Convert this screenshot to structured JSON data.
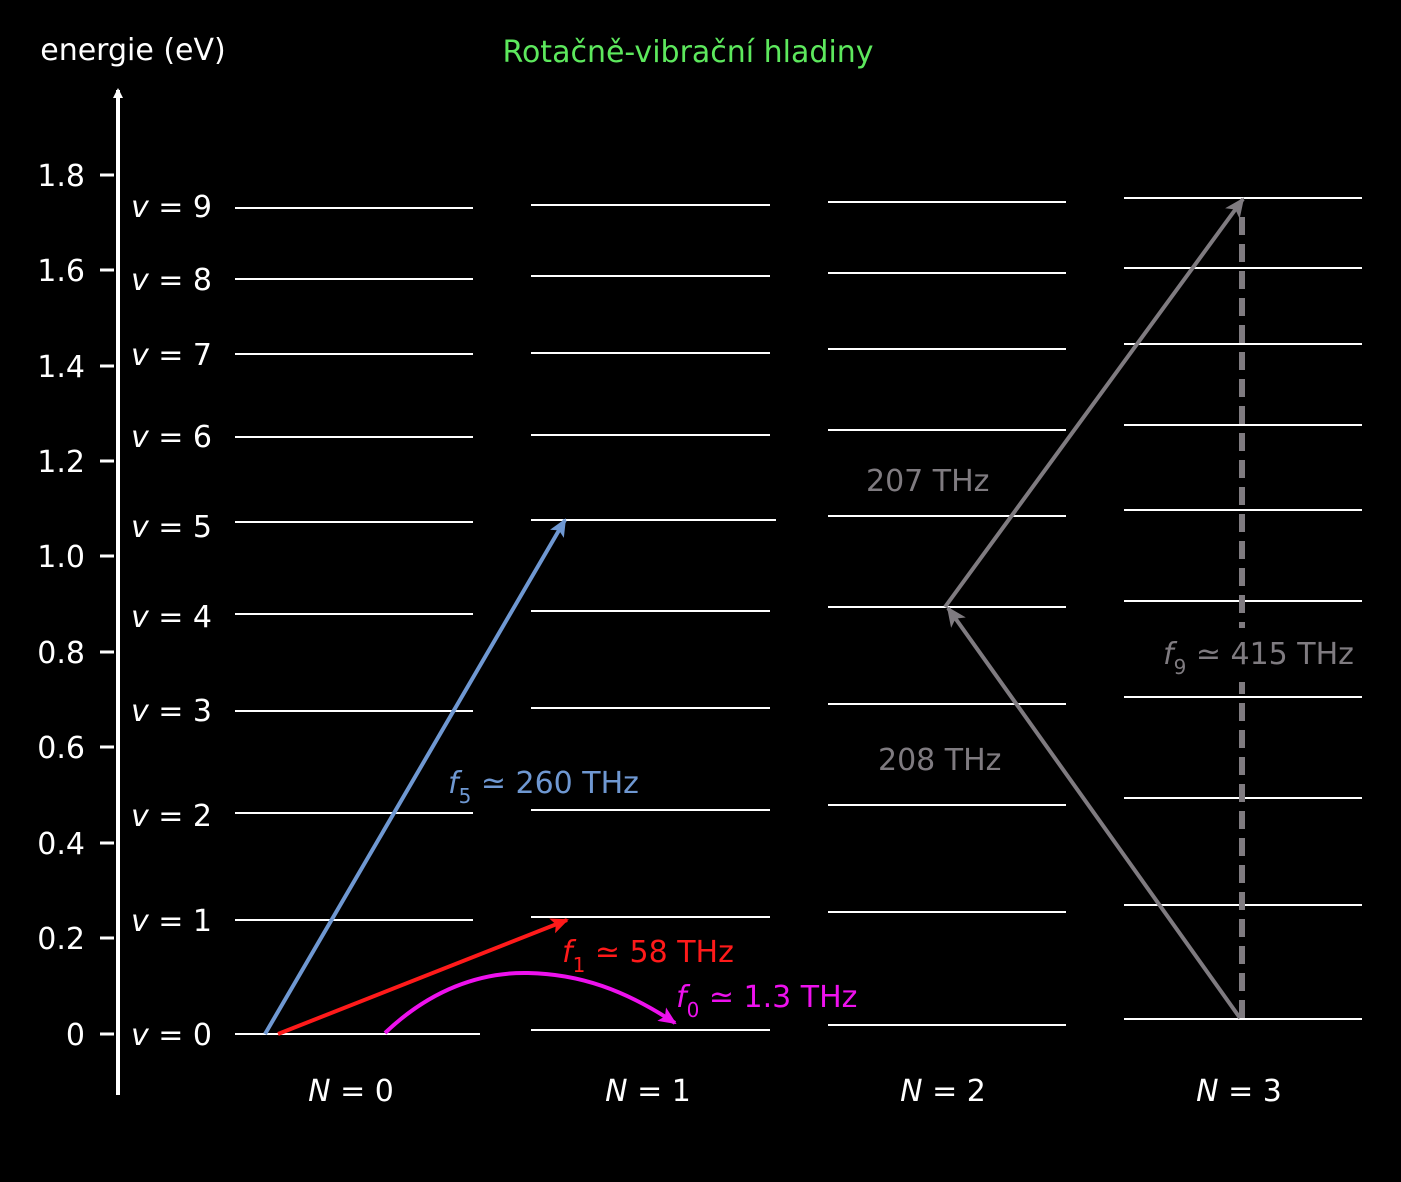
{
  "title": "Rotačně-vibrační hladiny",
  "y_axis_label": "energie (eV)",
  "y_ticks": [
    "0",
    "0.2",
    "0.4",
    "0.6",
    "0.8",
    "1.0",
    "1.2",
    "1.4",
    "1.6",
    "1.8"
  ],
  "v_labels": [
    {
      "v": "v",
      "eq": " = 0"
    },
    {
      "v": "v",
      "eq": " = 1"
    },
    {
      "v": "v",
      "eq": " = 2"
    },
    {
      "v": "v",
      "eq": " = 3"
    },
    {
      "v": "v",
      "eq": " = 4"
    },
    {
      "v": "v",
      "eq": " = 5"
    },
    {
      "v": "v",
      "eq": " = 6"
    },
    {
      "v": "v",
      "eq": " = 7"
    },
    {
      "v": "v",
      "eq": " = 8"
    },
    {
      "v": "v",
      "eq": " = 9"
    }
  ],
  "n_labels": [
    {
      "n": "N",
      "eq": " = 0"
    },
    {
      "n": "N",
      "eq": " = 1"
    },
    {
      "n": "N",
      "eq": " = 2"
    },
    {
      "n": "N",
      "eq": " = 3"
    }
  ],
  "transitions": {
    "f5": {
      "sym": "f",
      "sub": "5",
      "text": " ≃ 260 THz"
    },
    "f1": {
      "sym": "f",
      "sub": "1",
      "text": " ≃ 58 THz"
    },
    "f0": {
      "sym": "f",
      "sub": "0",
      "text": " ≃ 1.3 THz"
    },
    "f9": {
      "sym": "f",
      "sub": "9",
      "text": " ≃ 415 THz"
    },
    "up": {
      "text": "207 THz"
    },
    "down": {
      "text": "208 THz"
    }
  },
  "colors": {
    "background": "#000000",
    "title": "#5de85d",
    "f5": "#6f98d2",
    "f1": "#ff1a1a",
    "f0": "#ee11ee",
    "f9": "#7f7b80",
    "axis": "#ffffff"
  }
}
